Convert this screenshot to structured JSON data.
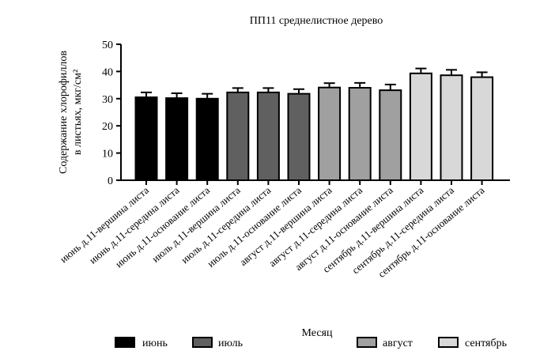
{
  "chart_data": {
    "type": "bar",
    "title": "ПП11 среднелистное дерево",
    "ylabel_lines": [
      "Содержание хлорофиллов",
      "в листьях, мкг/см²"
    ],
    "xlabel": "Месяц",
    "ylim": [
      0,
      50
    ],
    "yticks": [
      0,
      10,
      20,
      30,
      40,
      50
    ],
    "grid": false,
    "legend_placement": "bottom",
    "categories": [
      "июнь д.11-вершина листа",
      "июнь д.11-середина листа",
      "июнь д.11-основание листа",
      "июль д.11-вершина листа",
      "июль д.11-середина листа",
      "июль д.11-основание листа",
      "август д.11-вершина листа",
      "август д.11-середина листа",
      "август д.11-основание листа",
      "сентябрь д.11-вершина листа",
      "сентябрь д.11-середина листа",
      "сентябрь д.11-основание листа"
    ],
    "values": [
      30.5,
      30.2,
      30.0,
      32.3,
      32.3,
      31.8,
      34.1,
      34.0,
      33.1,
      39.3,
      38.6,
      37.9
    ],
    "errors": [
      1.8,
      1.8,
      1.8,
      1.6,
      1.6,
      1.7,
      1.6,
      1.8,
      2.1,
      1.8,
      2.0,
      1.8
    ],
    "groups": [
      0,
      0,
      0,
      1,
      1,
      1,
      2,
      2,
      2,
      3,
      3,
      3
    ],
    "legend": [
      {
        "label": "июнь",
        "color": "#000000"
      },
      {
        "label": "июль",
        "color": "#606060"
      },
      {
        "label": "август",
        "color": "#a0a0a0"
      },
      {
        "label": "сентябрь",
        "color": "#d8d8d8"
      }
    ]
  }
}
